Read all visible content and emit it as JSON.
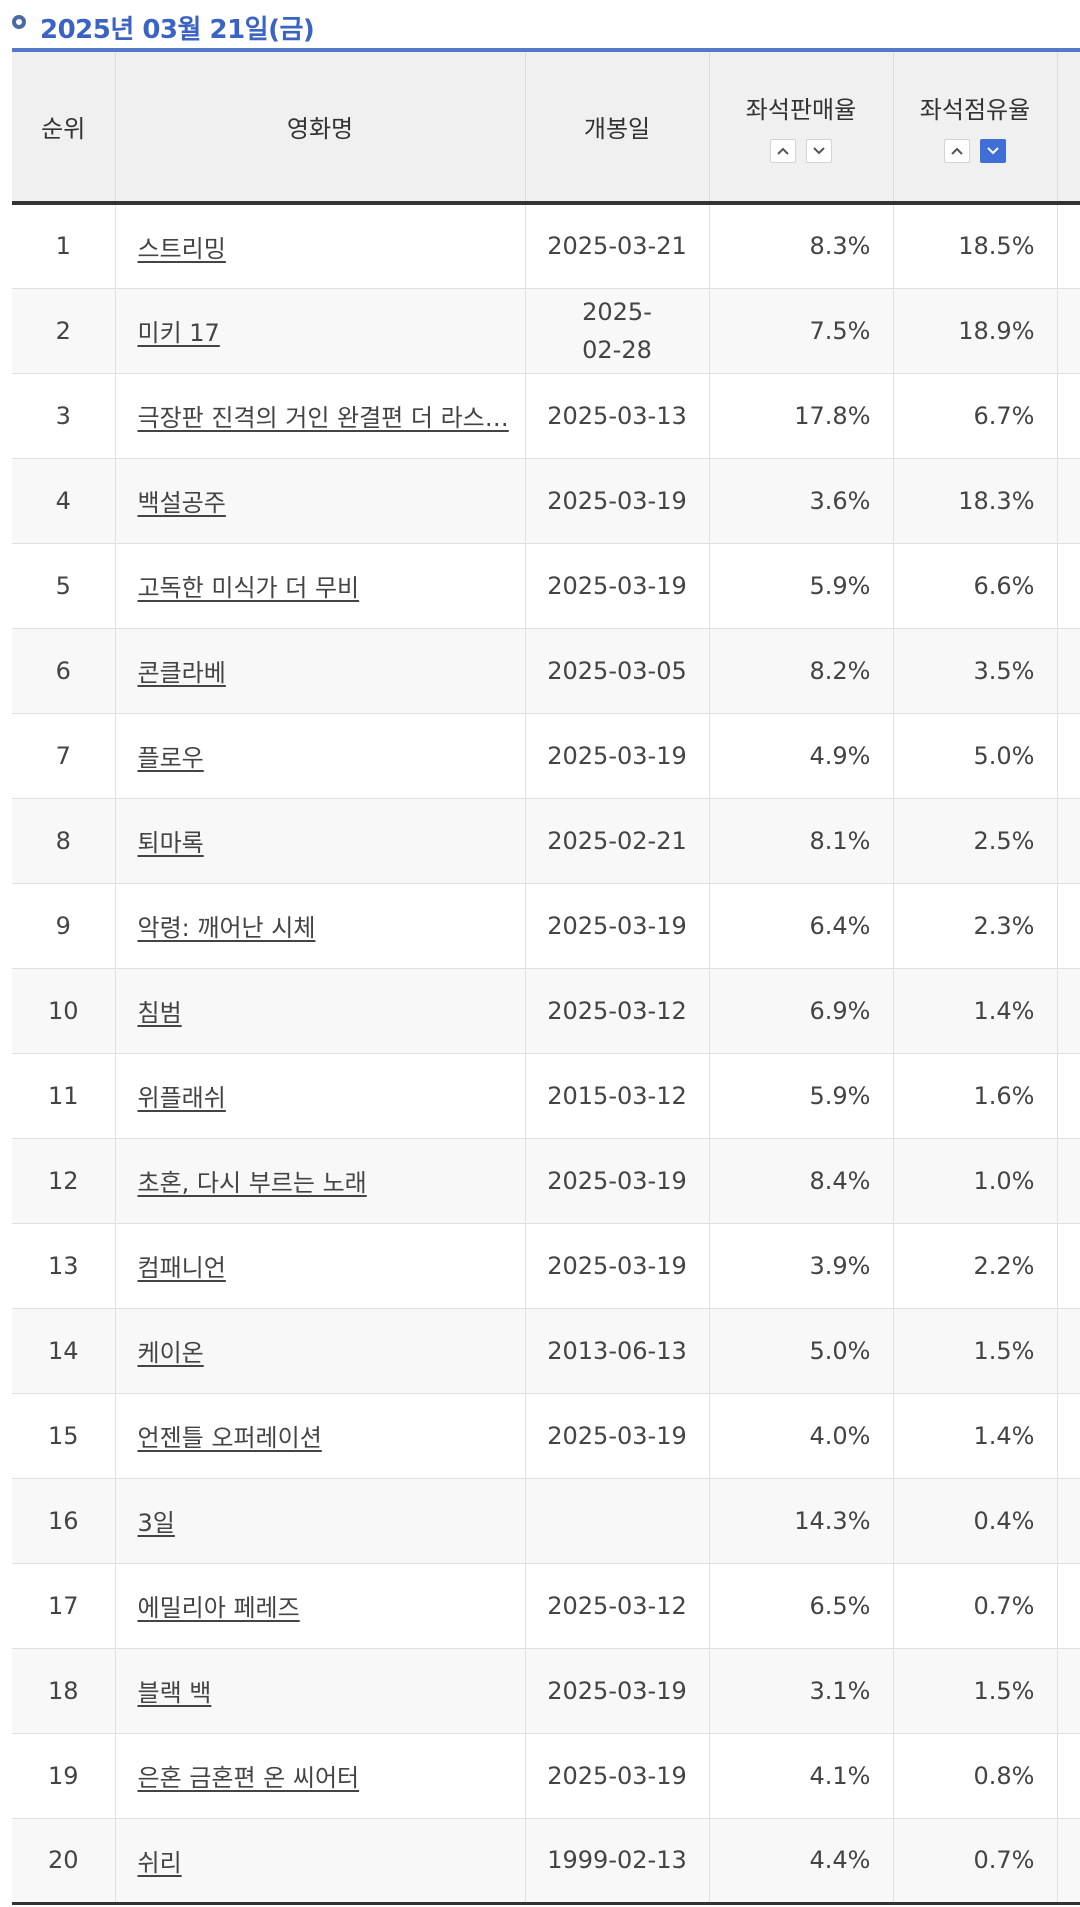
{
  "header": {
    "date_title": "2025년 03월 21일(금)"
  },
  "columns": {
    "rank": "순위",
    "movie": "영화명",
    "open_date": "개봉일",
    "seat_sales": "좌석판매율",
    "seat_occupancy": "좌석점유율"
  },
  "sort": {
    "seat_occupancy_active": "desc"
  },
  "rows": [
    {
      "rank": "1",
      "movie": "스트리밍",
      "open_date": "2025-03-21",
      "sales": "8.3%",
      "occupancy": "18.5%"
    },
    {
      "rank": "2",
      "movie": "미키 17",
      "open_date": "2025-02-28",
      "sales": "7.5%",
      "occupancy": "18.9%"
    },
    {
      "rank": "3",
      "movie": "극장판 진격의 거인 완결편 더 라스…",
      "open_date": "2025-03-13",
      "sales": "17.8%",
      "occupancy": "6.7%"
    },
    {
      "rank": "4",
      "movie": "백설공주",
      "open_date": "2025-03-19",
      "sales": "3.6%",
      "occupancy": "18.3%"
    },
    {
      "rank": "5",
      "movie": "고독한 미식가 더 무비",
      "open_date": "2025-03-19",
      "sales": "5.9%",
      "occupancy": "6.6%"
    },
    {
      "rank": "6",
      "movie": "콘클라베",
      "open_date": "2025-03-05",
      "sales": "8.2%",
      "occupancy": "3.5%"
    },
    {
      "rank": "7",
      "movie": "플로우",
      "open_date": "2025-03-19",
      "sales": "4.9%",
      "occupancy": "5.0%"
    },
    {
      "rank": "8",
      "movie": "퇴마록",
      "open_date": "2025-02-21",
      "sales": "8.1%",
      "occupancy": "2.5%"
    },
    {
      "rank": "9",
      "movie": "악령: 깨어난 시체",
      "open_date": "2025-03-19",
      "sales": "6.4%",
      "occupancy": "2.3%"
    },
    {
      "rank": "10",
      "movie": "침범",
      "open_date": "2025-03-12",
      "sales": "6.9%",
      "occupancy": "1.4%"
    },
    {
      "rank": "11",
      "movie": "위플래쉬",
      "open_date": "2015-03-12",
      "sales": "5.9%",
      "occupancy": "1.6%"
    },
    {
      "rank": "12",
      "movie": "초혼, 다시 부르는 노래",
      "open_date": "2025-03-19",
      "sales": "8.4%",
      "occupancy": "1.0%"
    },
    {
      "rank": "13",
      "movie": "컴패니언",
      "open_date": "2025-03-19",
      "sales": "3.9%",
      "occupancy": "2.2%"
    },
    {
      "rank": "14",
      "movie": "케이온",
      "open_date": "2013-06-13",
      "sales": "5.0%",
      "occupancy": "1.5%"
    },
    {
      "rank": "15",
      "movie": "언젠틀 오퍼레이션",
      "open_date": "2025-03-19",
      "sales": "4.0%",
      "occupancy": "1.4%"
    },
    {
      "rank": "16",
      "movie": "3일",
      "open_date": "",
      "sales": "14.3%",
      "occupancy": "0.4%"
    },
    {
      "rank": "17",
      "movie": "에밀리아 페레즈",
      "open_date": "2025-03-12",
      "sales": "6.5%",
      "occupancy": "0.7%"
    },
    {
      "rank": "18",
      "movie": "블랙 백",
      "open_date": "2025-03-19",
      "sales": "3.1%",
      "occupancy": "1.5%"
    },
    {
      "rank": "19",
      "movie": "은혼 금혼편 온 씨어터",
      "open_date": "2025-03-19",
      "sales": "4.1%",
      "occupancy": "0.8%"
    },
    {
      "rank": "20",
      "movie": "쉬리",
      "open_date": "1999-02-13",
      "sales": "4.4%",
      "occupancy": "0.7%"
    }
  ],
  "colors": {
    "accent": "#3a63c4",
    "active_sort": "#3f6fd6",
    "header_bg": "#f0f0f0"
  }
}
